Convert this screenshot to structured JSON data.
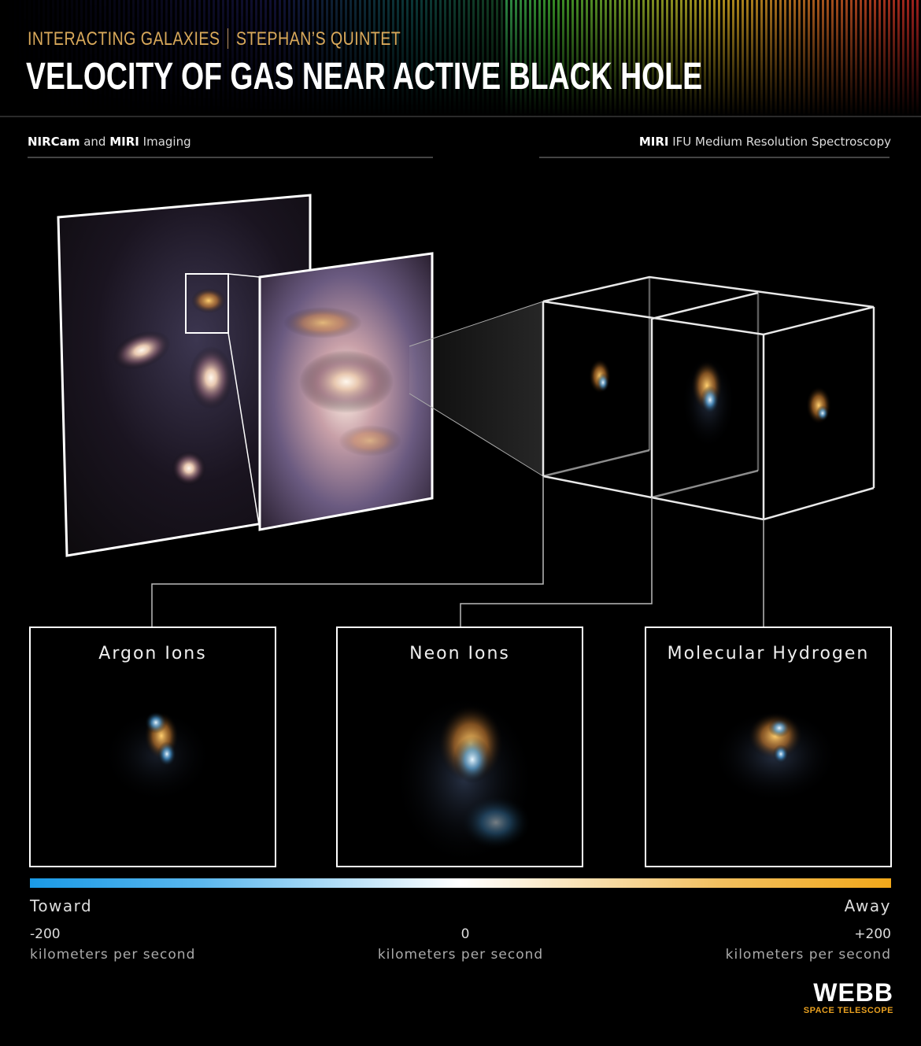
{
  "header": {
    "kicker": [
      "INTERACTING GALAXIES",
      "STEPHAN’S QUINTET"
    ],
    "title": "VELOCITY OF GAS NEAR ACTIVE BLACK HOLE"
  },
  "sections": {
    "imaging": [
      "NIRCam",
      "and",
      "MIRI",
      "Imaging"
    ],
    "spectroscopy": [
      "MIRI",
      "IFU Medium Resolution Spectroscopy"
    ]
  },
  "panels": [
    {
      "label": "Argon Ions"
    },
    {
      "label": "Neon Ions"
    },
    {
      "label": "Molecular Hydrogen"
    }
  ],
  "scale": {
    "left": {
      "direction": "Toward",
      "value": "-200",
      "unit": "kilometers per second"
    },
    "center": {
      "value": "0",
      "unit": "kilometers per second"
    },
    "right": {
      "direction": "Away",
      "value": "+200",
      "unit": "kilometers per second"
    }
  },
  "logo": {
    "name": "WEBB",
    "subtitle": "SPACE TELESCOPE"
  }
}
